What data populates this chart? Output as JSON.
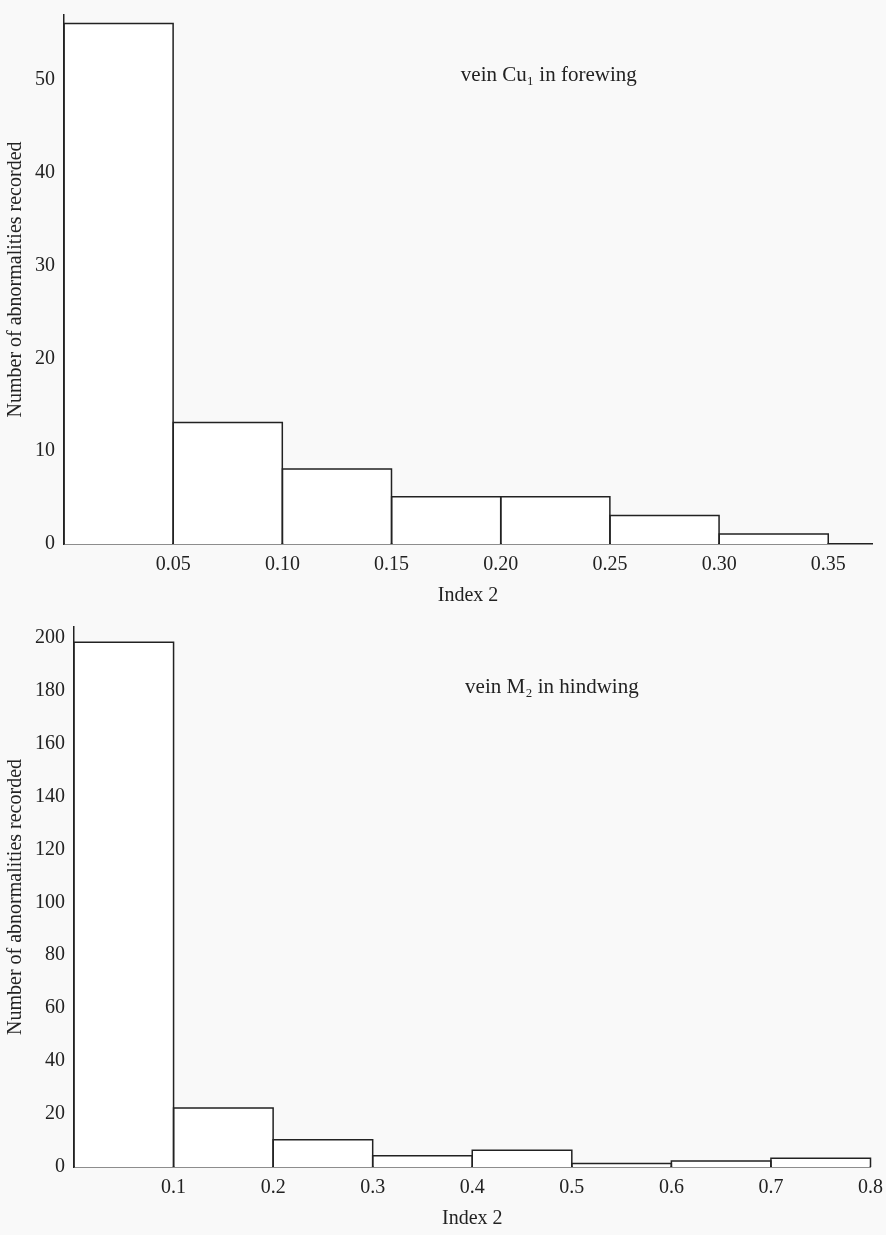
{
  "chart_data": [
    {
      "type": "histogram",
      "title": "vein Cu₁ in forewing",
      "xlabel": "Index 2",
      "ylabel": "Number of abnormalities recorded",
      "bins": [
        0,
        0.05,
        0.1,
        0.15,
        0.2,
        0.25,
        0.3,
        0.35
      ],
      "values": [
        56,
        13,
        8,
        5,
        5,
        3,
        1
      ],
      "color": "#ffffff",
      "xlim": [
        0,
        0.37
      ],
      "ylim": [
        0,
        57
      ],
      "xticks": [
        0.05,
        {
          "value": 0.1,
          "label": "0.10"
        },
        0.15,
        {
          "value": 0.2,
          "label": "0.20"
        },
        0.25,
        {
          "value": 0.3,
          "label": "0.30"
        },
        0.35
      ],
      "yticks": [
        0,
        10,
        20,
        30,
        40,
        50
      ]
    },
    {
      "type": "histogram",
      "title": "vein M₂ in hindwing",
      "xlabel": "Index 2",
      "ylabel": "Number of abnormalities recorded",
      "bins": [
        0,
        0.1,
        0.2,
        0.3,
        0.4,
        0.5,
        0.6,
        0.7,
        0.8
      ],
      "values": [
        198,
        22,
        10,
        4,
        6,
        1,
        2,
        3
      ],
      "color": "#ffffff",
      "xlim": [
        0,
        0.8
      ],
      "ylim": [
        0,
        204
      ],
      "xticks": [
        0.1,
        0.2,
        0.3,
        0.4,
        0.5,
        0.6,
        0.7,
        0.8
      ],
      "yticks": [
        0,
        20,
        40,
        60,
        80,
        100,
        120,
        140,
        160,
        180,
        200
      ]
    }
  ]
}
